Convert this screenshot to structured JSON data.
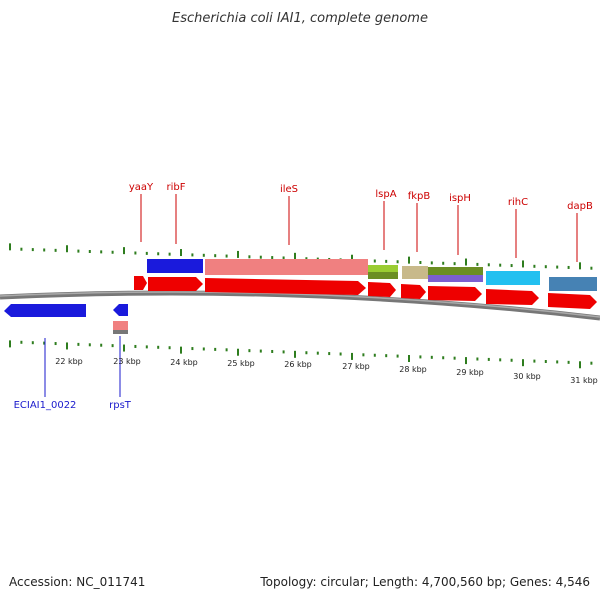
{
  "title": "Escherichia coli IAI1, complete genome",
  "footer": {
    "accession": "Accession: NC_011741",
    "summary": "Topology: circular; Length: 4,700,560 bp; Genes: 4,546"
  },
  "colors": {
    "backbone": "#888888",
    "tick": "#2e7d1e",
    "label_top": "#cc0000",
    "label_bottom": "#1a1acc"
  },
  "kbp_labels": [
    "22 kbp",
    "23 kbp",
    "24 kbp",
    "25 kbp",
    "26 kbp",
    "27 kbp",
    "28 kbp",
    "29 kbp",
    "30 kbp",
    "31 kbp"
  ],
  "top_gene_labels": [
    "yaaY",
    "ribF",
    "ileS",
    "lspA",
    "fkpB",
    "ispH",
    "rihC",
    "dapB"
  ],
  "bottom_gene_labels": [
    "ECIAI1_0022",
    "rpsT"
  ]
}
